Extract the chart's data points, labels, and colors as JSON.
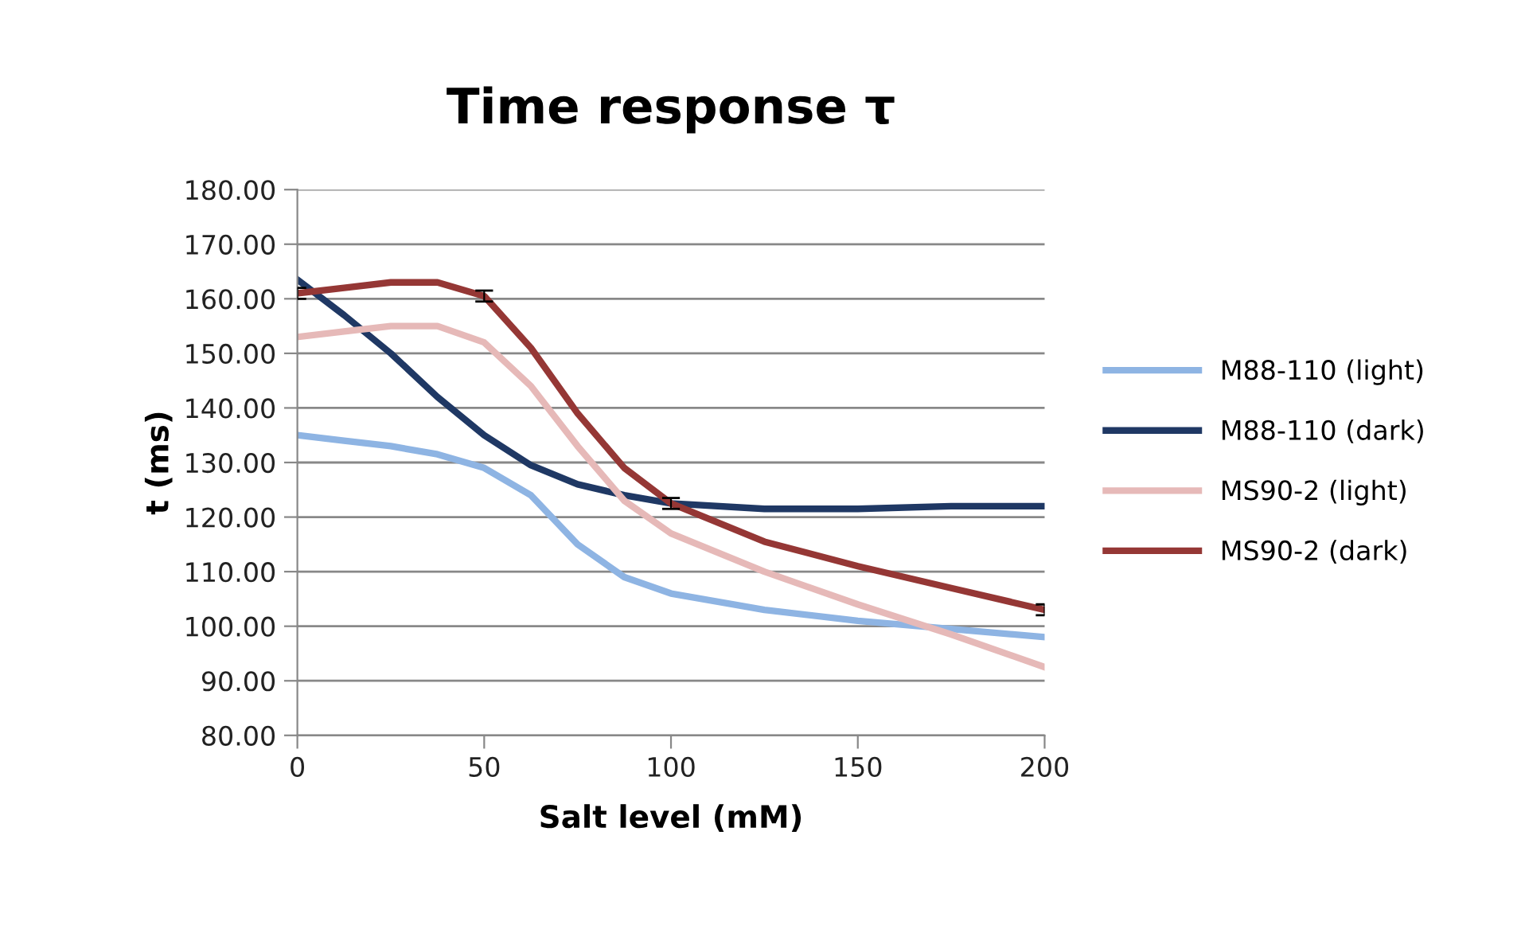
{
  "chart_data": {
    "type": "line",
    "title": "Time response τ",
    "xlabel": "Salt level (mM)",
    "ylabel": "t (ms)",
    "x": [
      0,
      12.5,
      25,
      37.5,
      50,
      62.5,
      75,
      87.5,
      100,
      125,
      150,
      175,
      200
    ],
    "series": [
      {
        "name": "M88-110 (light)",
        "color": "#8eb4e3",
        "values": [
          135,
          134,
          133,
          131.5,
          129,
          124,
          115,
          109,
          106,
          103,
          101,
          99.5,
          98
        ]
      },
      {
        "name": "M88-110 (dark)",
        "color": "#1f3864",
        "values": [
          163.5,
          157,
          150,
          142,
          135,
          129.5,
          126,
          124,
          122.5,
          121.5,
          121.5,
          122,
          122
        ]
      },
      {
        "name": "MS90-2 (light)",
        "color": "#e6b9b8",
        "values": [
          153,
          154,
          155,
          155,
          152,
          144,
          133,
          123,
          117,
          110,
          104,
          98.5,
          92.5
        ]
      },
      {
        "name": "MS90-2 (dark)",
        "color": "#953735",
        "values": [
          161,
          162,
          163,
          163,
          160.5,
          151,
          139,
          129,
          122.5,
          115.5,
          111,
          107,
          103
        ],
        "errors": [
          1,
          null,
          null,
          null,
          1,
          null,
          null,
          null,
          1,
          null,
          null,
          null,
          1
        ]
      }
    ],
    "xlim": [
      0,
      200
    ],
    "xticks": [
      0,
      50,
      100,
      150,
      200
    ],
    "ylim": [
      80,
      180
    ],
    "yticks": [
      {
        "value": 80,
        "label": "80.00"
      },
      {
        "value": 90,
        "label": "90.00"
      },
      {
        "value": 100,
        "label": "100.00"
      },
      {
        "value": 110,
        "label": "110.00"
      },
      {
        "value": 120,
        "label": "120.00"
      },
      {
        "value": 130,
        "label": "130.00"
      },
      {
        "value": 140,
        "label": "140.00"
      },
      {
        "value": 150,
        "label": "150.00"
      },
      {
        "value": 160,
        "label": "160.00"
      },
      {
        "value": 170,
        "label": "170.00"
      },
      {
        "value": 180,
        "label": "180.00"
      }
    ],
    "grid": "y",
    "legend": "right",
    "marker": "none",
    "line_style": "solid"
  }
}
